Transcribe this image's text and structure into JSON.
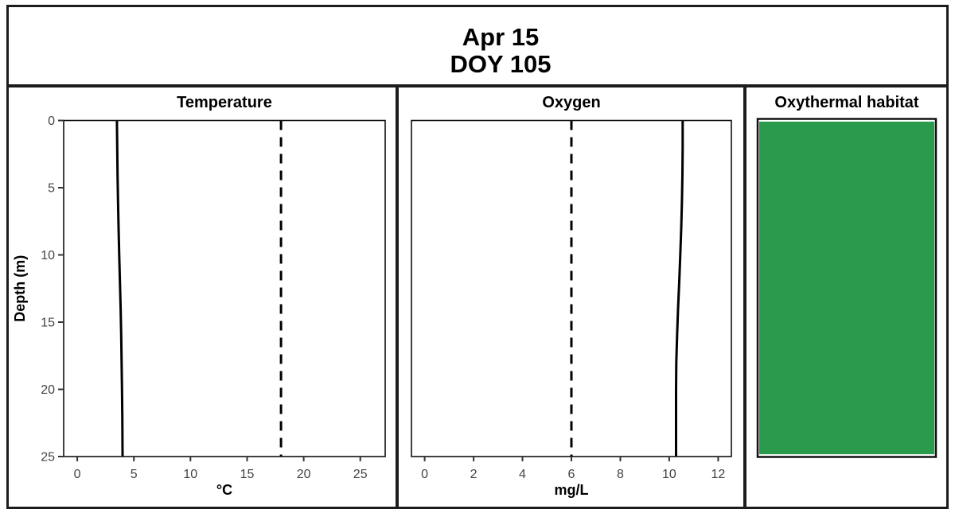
{
  "figure": {
    "title_line1": "Apr 15",
    "title_line2": "DOY 105"
  },
  "chart_data": [
    {
      "panel": "temperature",
      "type": "line",
      "title": "Temperature",
      "xlabel": "°C",
      "ylabel": "Depth (m)",
      "xlim": [
        -1.2,
        27.2
      ],
      "ylim": [
        0,
        25
      ],
      "y_orientation": "depth-increasing-downward",
      "grid": false,
      "xticks": [
        0,
        5,
        10,
        15,
        20,
        25
      ],
      "yticks": [
        0,
        5,
        10,
        15,
        20,
        25
      ],
      "reference_line_x": 18,
      "reference_line_style": "dashed",
      "series": [
        {
          "name": "temperature-profile",
          "style": "solid",
          "depth": [
            0,
            2,
            4,
            6,
            8,
            10,
            12,
            14,
            16,
            18,
            20,
            22,
            25
          ],
          "value": [
            3.5,
            3.53,
            3.56,
            3.6,
            3.65,
            3.71,
            3.77,
            3.83,
            3.88,
            3.92,
            3.95,
            3.98,
            4.0
          ]
        }
      ]
    },
    {
      "panel": "oxygen",
      "type": "line",
      "title": "Oxygen",
      "xlabel": "mg/L",
      "ylabel": "",
      "xlim": [
        -0.54,
        12.54
      ],
      "ylim": [
        0,
        25
      ],
      "y_orientation": "depth-increasing-downward",
      "grid": false,
      "xticks": [
        0,
        2,
        4,
        6,
        8,
        10,
        12
      ],
      "yticks": [],
      "reference_line_x": 6,
      "reference_line_style": "dashed",
      "series": [
        {
          "name": "oxygen-profile",
          "style": "solid",
          "depth": [
            0,
            2,
            4,
            6,
            8,
            10,
            12,
            14,
            16,
            18,
            20,
            22,
            25
          ],
          "value": [
            10.55,
            10.55,
            10.54,
            10.52,
            10.49,
            10.45,
            10.41,
            10.36,
            10.32,
            10.29,
            10.28,
            10.28,
            10.28
          ]
        }
      ]
    },
    {
      "panel": "oxythermal-habitat",
      "type": "area",
      "title": "Oxythermal habitat",
      "xlabel": "",
      "ylabel": "",
      "xlim": [
        0,
        1
      ],
      "ylim": [
        0,
        25
      ],
      "y_orientation": "depth-increasing-downward",
      "grid": false,
      "xticks": [],
      "yticks": [],
      "habitat_color": "#2a9a4d",
      "segments": [
        {
          "label": "suitable-habitat",
          "depth_top": 0.2,
          "depth_bottom": 24.8
        }
      ]
    }
  ],
  "colors": {
    "habitat_green": "#2a9a4d",
    "profile_line": "#000000",
    "tick_text": "#444444",
    "border": "#1c1c1c"
  }
}
